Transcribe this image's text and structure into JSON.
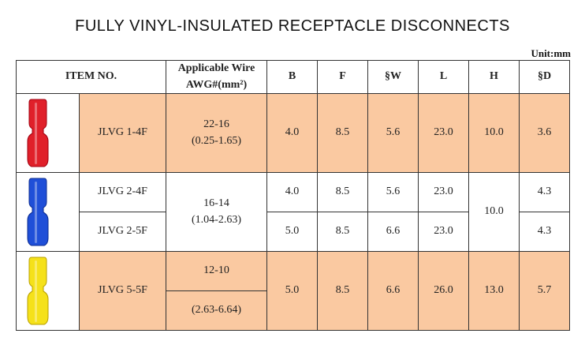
{
  "title": "FULLY VINYL-INSULATED RECEPTACLE DISCONNECTS",
  "unit": "Unit:mm",
  "table": {
    "header": {
      "item": "ITEM NO.",
      "wire": [
        "Applicable Wire",
        "AWG#(mm²)"
      ],
      "cols": [
        "B",
        "F",
        "§W",
        "L",
        "H",
        "§D"
      ]
    },
    "rows": [
      {
        "item": "JLVG 1-4F",
        "wire": [
          "22-16",
          "(0.25-1.65)"
        ],
        "B": "4.0",
        "F": "8.5",
        "W": "5.6",
        "L": "23.0",
        "H": "10.0",
        "D": "3.6"
      },
      {
        "item": "JLVG 2-4F",
        "wire": [
          "16-14",
          "(1.04-2.63)"
        ],
        "B": "4.0",
        "F": "8.5",
        "W": "5.6",
        "L": "23.0",
        "H": "10.0",
        "D": "4.3"
      },
      {
        "item": "JLVG 2-5F",
        "B": "5.0",
        "F": "8.5",
        "W": "6.6",
        "L": "23.0",
        "D": "4.3"
      },
      {
        "item": "JLVG 5-5F",
        "wire": [
          "12-10",
          "(2.63-6.64)"
        ],
        "B": "5.0",
        "F": "8.5",
        "W": "6.6",
        "L": "26.0",
        "H": "13.0",
        "D": "5.7"
      }
    ]
  }
}
